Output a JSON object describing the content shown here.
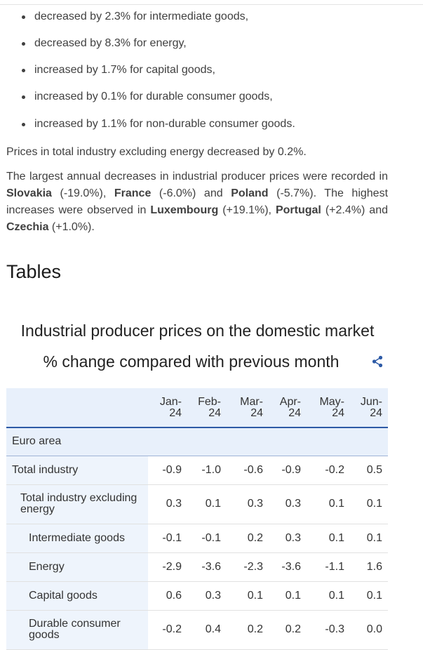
{
  "bullets": [
    "decreased by 2.3% for intermediate goods,",
    "decreased by 8.3% for energy,",
    "increased by 1.7% for capital goods,",
    "increased by 0.1% for durable consumer goods,",
    "increased by 1.1% for non-durable consumer goods."
  ],
  "para1": "Prices in total industry excluding energy decreased by 0.2%.",
  "para2": {
    "t1": "The largest annual decreases in industrial producer prices were recorded in ",
    "c1": "Slovakia",
    "t2": " (-19.0%), ",
    "c2": "France",
    "t3": " (-6.0%) and ",
    "c3": "Poland",
    "t4": " (-5.7%). The highest increases were observed in ",
    "c4": "Luxembourg",
    "t5": " (+19.1%), ",
    "c5": "Portugal",
    "t6": " (+2.4%) and ",
    "c6": "Czechia",
    "t7": " (+1.0%)."
  },
  "section_heading": "Tables",
  "table_title": "Industrial producer prices on the domestic market",
  "table_subtitle": "% change compared with previous month",
  "table": {
    "columns": [
      {
        "l1": "Jan-",
        "l2": "24"
      },
      {
        "l1": "Feb-",
        "l2": "24"
      },
      {
        "l1": "Mar-",
        "l2": "24"
      },
      {
        "l1": "Apr-",
        "l2": "24"
      },
      {
        "l1": "May-",
        "l2": "24"
      },
      {
        "l1": "Jun-",
        "l2": "24"
      }
    ],
    "section": "Euro area",
    "rows": [
      {
        "label": "Total industry",
        "values": [
          "-0.9",
          "-1.0",
          "-0.6",
          "-0.9",
          "-0.2",
          "0.5"
        ]
      },
      {
        "label": "Total industry excluding energy",
        "values": [
          "0.3",
          "0.1",
          "0.3",
          "0.3",
          "0.1",
          "0.1"
        ]
      },
      {
        "label": "Intermediate goods",
        "values": [
          "-0.1",
          "-0.1",
          "0.2",
          "0.3",
          "0.1",
          "0.1"
        ]
      },
      {
        "label": "Energy",
        "values": [
          "-2.9",
          "-3.6",
          "-2.3",
          "-3.6",
          "-1.1",
          "1.6"
        ]
      },
      {
        "label": "Capital goods",
        "values": [
          "0.6",
          "0.3",
          "0.1",
          "0.1",
          "0.1",
          "0.1"
        ]
      },
      {
        "label": "Durable consumer goods",
        "values": [
          "-0.2",
          "0.4",
          "0.2",
          "0.2",
          "-0.3",
          "0.0"
        ]
      }
    ]
  },
  "icons": {
    "share": "share-icon"
  },
  "colors": {
    "header_bg": "#e8f0fb",
    "header_rule": "#2d5aa6",
    "accent": "#2d5aa6"
  }
}
